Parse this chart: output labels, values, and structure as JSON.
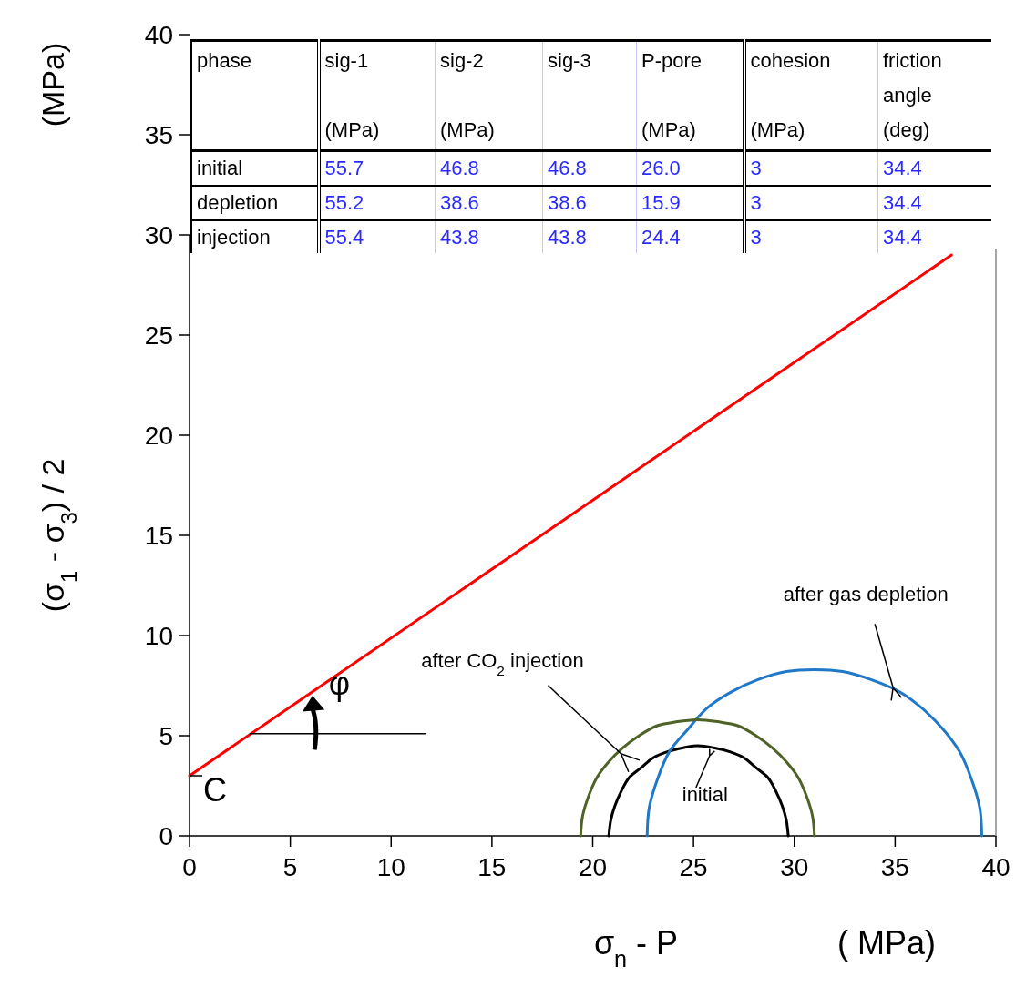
{
  "chart_data": {
    "type": "line",
    "xlabel": "σ$_{n}$ - P",
    "ylabel": "(σ$_{1}$ - σ$_{3}$) / 2",
    "xlim": [
      0,
      40
    ],
    "xticks": [
      0,
      5,
      10,
      15,
      20,
      25,
      30,
      35,
      40
    ],
    "ylim": [
      0,
      40
    ],
    "yticks": [
      0,
      5,
      10,
      15,
      20,
      25,
      30,
      35,
      40
    ],
    "grid": false,
    "line_style": "solid",
    "series": [
      {
        "color": "#ff0000",
        "x": [
          0,
          37.8
        ],
        "values": [
          3,
          29.0
        ]
      },
      {
        "color": "#000000",
        "x": [
          3,
          11.7
        ],
        "values": [
          5.1,
          5.1
        ]
      },
      {
        "color": "#000000",
        "x": [
          29.7,
          29.6,
          29.4,
          29.1,
          28.7,
          28.1,
          27.5,
          26.8,
          26.0,
          25.2,
          24.5,
          23.7,
          23.0,
          22.4,
          21.8,
          21.4,
          21.1,
          20.9,
          20.8
        ],
        "values": [
          0,
          0.8,
          1.5,
          2.2,
          2.9,
          3.4,
          3.9,
          4.2,
          4.4,
          4.5,
          4.4,
          4.2,
          3.9,
          3.4,
          2.9,
          2.2,
          1.5,
          0.8,
          0
        ]
      },
      {
        "color": "#1f78c8",
        "x": [
          39.3,
          39.2,
          38.8,
          38.2,
          37.4,
          36.3,
          35.2,
          33.8,
          32.4,
          31.0,
          29.6,
          28.2,
          26.9,
          25.7,
          24.7,
          23.8,
          23.2,
          22.8,
          22.7
        ],
        "values": [
          0,
          1.4,
          2.8,
          4.2,
          5.3,
          6.4,
          7.2,
          7.8,
          8.2,
          8.3,
          8.2,
          7.8,
          7.2,
          6.4,
          5.3,
          4.2,
          2.8,
          1.4,
          0
        ]
      },
      {
        "color": "#4f6228",
        "x": [
          31.0,
          30.9,
          30.6,
          30.2,
          29.6,
          28.9,
          28.1,
          27.2,
          26.2,
          25.2,
          24.2,
          23.2,
          22.3,
          21.5,
          20.8,
          20.2,
          19.8,
          19.5,
          19.4
        ],
        "values": [
          0,
          1.0,
          2.0,
          2.9,
          3.7,
          4.4,
          5.0,
          5.5,
          5.7,
          5.8,
          5.7,
          5.5,
          5.0,
          4.4,
          3.7,
          2.9,
          2.0,
          1.0,
          0
        ]
      }
    ],
    "annotations": [
      "phase",
      "sig-1\n\n(MPa)",
      "sig-2\n\n(MPa)",
      "sig-3",
      "P-pore\n\n(MPa)",
      "cohesion\n\n(MPa)",
      "friction\nangle\n(deg)",
      "initial",
      "55.7",
      "46.8",
      "46.8",
      "26.0",
      "3",
      "34.4",
      "depletion",
      "55.2",
      "38.6",
      "38.6",
      "15.9",
      "3",
      "34.4",
      "injection",
      "55.4",
      "43.8",
      "43.8",
      "24.4",
      "3",
      "34.4",
      "(MPa)",
      "( MPa)",
      {
        "text": "after gas depletion",
        "x": 34.9,
        "y": 7.4
      },
      {
        "text": "after CO$_{2}$ injection",
        "x": 21.4,
        "y": 4.1
      },
      {
        "text": "initial",
        "x": 25.8,
        "y": 4.0
      },
      {
        "text": "φ",
        "x": 6.0,
        "y": 6.8
      },
      {
        "text": "C",
        "x": 0,
        "y": 3
      }
    ]
  }
}
